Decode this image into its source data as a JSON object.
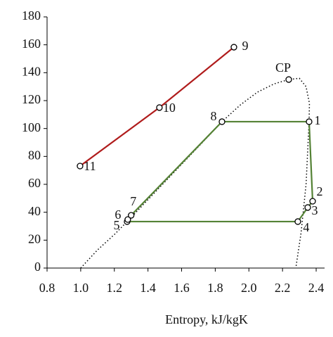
{
  "chart_data": {
    "type": "line",
    "x_label": "Entropy, kJ/kgK",
    "xlim": [
      0.8,
      2.45
    ],
    "xticks": [
      {
        "value": 0.8,
        "label": "0.8"
      },
      {
        "value": 1.0,
        "label": "1.0"
      },
      1.2,
      1.4,
      1.6,
      1.8,
      {
        "value": 2.0,
        "label": "2.0"
      },
      2.2,
      2.4
    ],
    "ylim": [
      0,
      180
    ],
    "yticks": [
      0,
      20,
      40,
      60,
      80,
      100,
      120,
      140,
      160,
      180
    ],
    "series": [
      {
        "color": "#000000",
        "style": "dotted",
        "markers": false,
        "x": [
          1.0,
          1.1,
          1.2,
          1.276,
          1.4,
          1.55,
          1.7,
          1.84,
          1.95,
          2.05,
          2.15,
          2.237,
          2.3,
          2.34,
          2.36,
          2.358,
          2.34,
          2.31,
          2.279
        ],
        "values": [
          0,
          13,
          24,
          33.3,
          49,
          68,
          87,
          104.9,
          117,
          126,
          132,
          135.1,
          136,
          130,
          118,
          104.9,
          60,
          25,
          0
        ]
      },
      {
        "color": "#548235",
        "style": "solid",
        "closed": true,
        "markers": true,
        "x": [
          2.358,
          2.379,
          2.35,
          2.291,
          1.276,
          1.28,
          1.3,
          1.84
        ],
        "values": [
          104.9,
          47.9,
          43.4,
          33.3,
          33.3,
          34.8,
          37.8,
          104.9
        ],
        "labels": [
          "1",
          "2",
          "3",
          "4",
          "5",
          "6",
          "7",
          "8"
        ]
      },
      {
        "color": "#b01c1c",
        "style": "solid",
        "markers": true,
        "x": [
          1.911,
          1.468,
          0.996
        ],
        "values": [
          158.3,
          115,
          73.1
        ],
        "labels": [
          "9",
          "10",
          "11"
        ]
      },
      {
        "color": "#000000",
        "style": "none",
        "markers": true,
        "x": [
          2.237
        ],
        "values": [
          135.1
        ],
        "labels": [
          "CP"
        ]
      }
    ]
  }
}
